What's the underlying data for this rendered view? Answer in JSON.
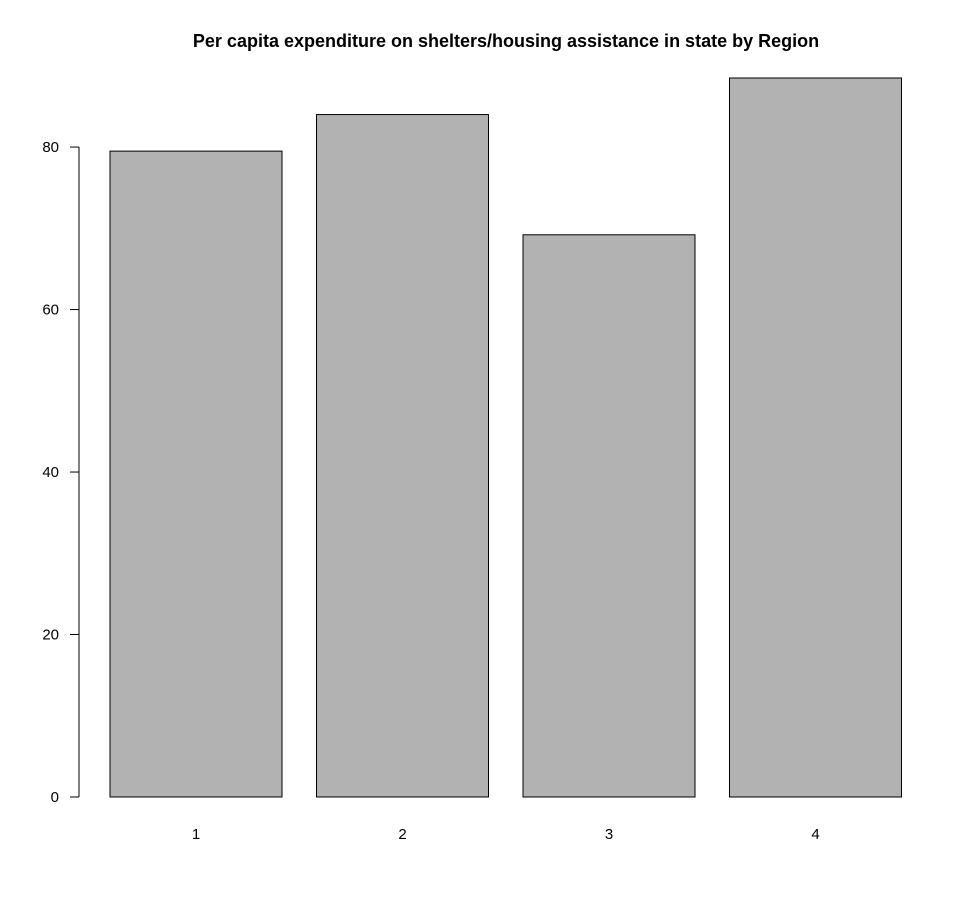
{
  "chart_data": {
    "type": "bar",
    "title": "Per capita expenditure on shelters/housing assistance in state by Region",
    "xlabel": "",
    "ylabel": "",
    "categories": [
      "1",
      "2",
      "3",
      "4"
    ],
    "values": [
      79.5,
      84.0,
      69.2,
      88.5
    ],
    "ylim": [
      0,
      88.5
    ],
    "yticks": [
      0,
      20,
      40,
      60,
      80
    ],
    "grid": false,
    "legend": "none",
    "bar_color": "#b2b2b2",
    "bar_border_color": "#000000"
  }
}
